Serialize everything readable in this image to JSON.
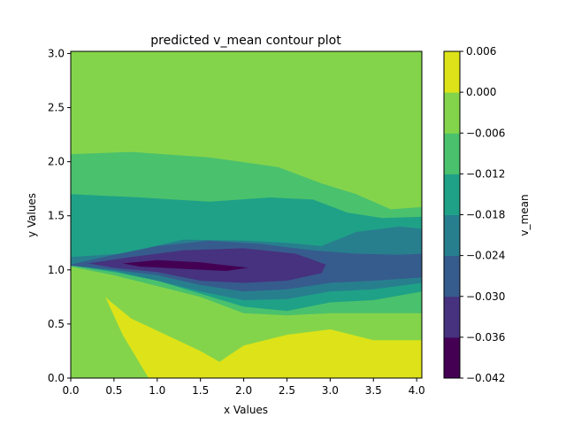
{
  "chart_data": {
    "type": "contour",
    "title": "predicted v_mean contour plot",
    "xlabel": "x Values",
    "ylabel": "y Values",
    "xlim": [
      0,
      4.06
    ],
    "ylim": [
      0,
      3.02
    ],
    "xticks": [
      "0.0",
      "0.5",
      "1.0",
      "1.5",
      "2.0",
      "2.5",
      "3.0",
      "3.5",
      "4.0"
    ],
    "yticks": [
      "0.0",
      "0.5",
      "1.0",
      "1.5",
      "2.0",
      "2.5",
      "3.0"
    ],
    "colorbar": {
      "label": "v_mean",
      "ticks": [
        "0.006",
        "0.000",
        "−0.006",
        "−0.012",
        "−0.018",
        "−0.024",
        "−0.030",
        "−0.036",
        "−0.042"
      ],
      "levels": [
        -0.042,
        -0.036,
        -0.03,
        -0.024,
        -0.018,
        -0.012,
        -0.006,
        0.0,
        0.006
      ],
      "colors": [
        "#440154",
        "#46327e",
        "#365c8d",
        "#277f8e",
        "#1fa187",
        "#4ac16d",
        "#84d44b",
        "#dde318"
      ]
    },
    "regions": [
      {
        "level": "0.000 to 0.006",
        "color": "#dde318",
        "outline": [
          [
            0.44,
            0.72
          ],
          [
            0.7,
            0.55
          ],
          [
            1.1,
            0.4
          ],
          [
            1.5,
            0.25
          ],
          [
            1.72,
            0.15
          ],
          [
            2.0,
            0.3
          ],
          [
            2.5,
            0.4
          ],
          [
            3.0,
            0.45
          ],
          [
            3.5,
            0.35
          ],
          [
            4.06,
            0.35
          ],
          [
            4.06,
            0.0
          ],
          [
            0.9,
            0.0
          ],
          [
            0.6,
            0.4
          ],
          [
            0.4,
            0.75
          ]
        ]
      },
      {
        "level": "-0.012 to -0.006",
        "color": "#4ac16d",
        "outline": [
          [
            0.0,
            1.7
          ],
          [
            0.6,
            1.68
          ],
          [
            1.5,
            1.63
          ],
          [
            2.2,
            1.7
          ],
          [
            2.6,
            1.85
          ],
          [
            3.0,
            1.73
          ],
          [
            3.4,
            1.6
          ],
          [
            3.7,
            1.53
          ],
          [
            4.06,
            1.57
          ],
          [
            4.06,
            0.6
          ],
          [
            3.5,
            0.6
          ],
          [
            3.0,
            0.6
          ],
          [
            2.5,
            0.58
          ],
          [
            2.0,
            0.6
          ],
          [
            1.5,
            0.75
          ],
          [
            1.0,
            0.85
          ],
          [
            0.5,
            0.95
          ],
          [
            0.0,
            1.03
          ]
        ]
      },
      {
        "level": "-0.012 to -0.006",
        "color": "#4ac16d",
        "outline": [
          [
            0.0,
            2.07
          ],
          [
            0.7,
            2.09
          ],
          [
            1.6,
            2.04
          ],
          [
            2.4,
            1.95
          ],
          [
            2.9,
            1.8
          ],
          [
            3.3,
            1.7
          ],
          [
            3.7,
            1.56
          ],
          [
            4.06,
            1.58
          ],
          [
            4.06,
            1.55
          ],
          [
            3.7,
            1.5
          ],
          [
            3.2,
            1.55
          ],
          [
            2.6,
            1.63
          ],
          [
            2.0,
            1.6
          ],
          [
            1.2,
            1.65
          ],
          [
            0.0,
            1.7
          ]
        ]
      },
      {
        "level": "-0.018 to -0.012",
        "color": "#1fa187",
        "outline": [
          [
            0.0,
            1.7
          ],
          [
            0.8,
            1.67
          ],
          [
            1.6,
            1.63
          ],
          [
            2.3,
            1.67
          ],
          [
            2.8,
            1.65
          ],
          [
            3.2,
            1.53
          ],
          [
            3.6,
            1.48
          ],
          [
            4.06,
            1.49
          ],
          [
            4.06,
            0.8
          ],
          [
            3.5,
            0.72
          ],
          [
            3.0,
            0.7
          ],
          [
            2.5,
            0.62
          ],
          [
            2.0,
            0.66
          ],
          [
            1.5,
            0.78
          ],
          [
            1.0,
            0.9
          ],
          [
            0.5,
            0.98
          ],
          [
            0.0,
            1.04
          ]
        ]
      },
      {
        "level": "-0.024 to -0.018",
        "color": "#277f8e",
        "outline": [
          [
            0.0,
            1.12
          ],
          [
            0.6,
            1.15
          ],
          [
            1.3,
            1.28
          ],
          [
            2.0,
            1.27
          ],
          [
            2.5,
            1.25
          ],
          [
            2.9,
            1.22
          ],
          [
            3.3,
            1.35
          ],
          [
            3.8,
            1.4
          ],
          [
            4.06,
            1.38
          ],
          [
            4.06,
            0.88
          ],
          [
            3.5,
            0.82
          ],
          [
            3.0,
            0.8
          ],
          [
            2.5,
            0.73
          ],
          [
            2.0,
            0.72
          ],
          [
            1.5,
            0.8
          ],
          [
            1.0,
            0.9
          ],
          [
            0.5,
            0.99
          ],
          [
            0.0,
            1.04
          ]
        ]
      },
      {
        "level": "-0.030 to -0.024",
        "color": "#365c8d",
        "outline": [
          [
            0.0,
            1.05
          ],
          [
            0.5,
            1.14
          ],
          [
            1.0,
            1.22
          ],
          [
            1.6,
            1.27
          ],
          [
            2.2,
            1.24
          ],
          [
            2.8,
            1.18
          ],
          [
            3.3,
            1.15
          ],
          [
            3.8,
            1.14
          ],
          [
            4.06,
            1.15
          ],
          [
            4.06,
            0.93
          ],
          [
            3.5,
            0.9
          ],
          [
            3.0,
            0.88
          ],
          [
            2.5,
            0.82
          ],
          [
            2.0,
            0.8
          ],
          [
            1.5,
            0.86
          ],
          [
            1.0,
            0.95
          ],
          [
            0.5,
            1.0
          ],
          [
            0.0,
            1.04
          ]
        ]
      },
      {
        "level": "-0.036 to -0.030",
        "color": "#46327e",
        "outline": [
          [
            0.2,
            1.06
          ],
          [
            0.7,
            1.12
          ],
          [
            1.3,
            1.18
          ],
          [
            2.0,
            1.2
          ],
          [
            2.6,
            1.15
          ],
          [
            2.95,
            1.05
          ],
          [
            2.9,
            0.97
          ],
          [
            2.5,
            0.9
          ],
          [
            2.0,
            0.88
          ],
          [
            1.5,
            0.9
          ],
          [
            1.0,
            0.98
          ],
          [
            0.5,
            1.02
          ]
        ]
      },
      {
        "level": "-0.042 to -0.036",
        "color": "#440154",
        "outline": [
          [
            0.6,
            1.06
          ],
          [
            1.0,
            1.09
          ],
          [
            1.5,
            1.07
          ],
          [
            2.05,
            1.02
          ],
          [
            1.8,
            0.99
          ],
          [
            1.3,
            1.01
          ],
          [
            0.8,
            1.03
          ]
        ]
      }
    ]
  }
}
